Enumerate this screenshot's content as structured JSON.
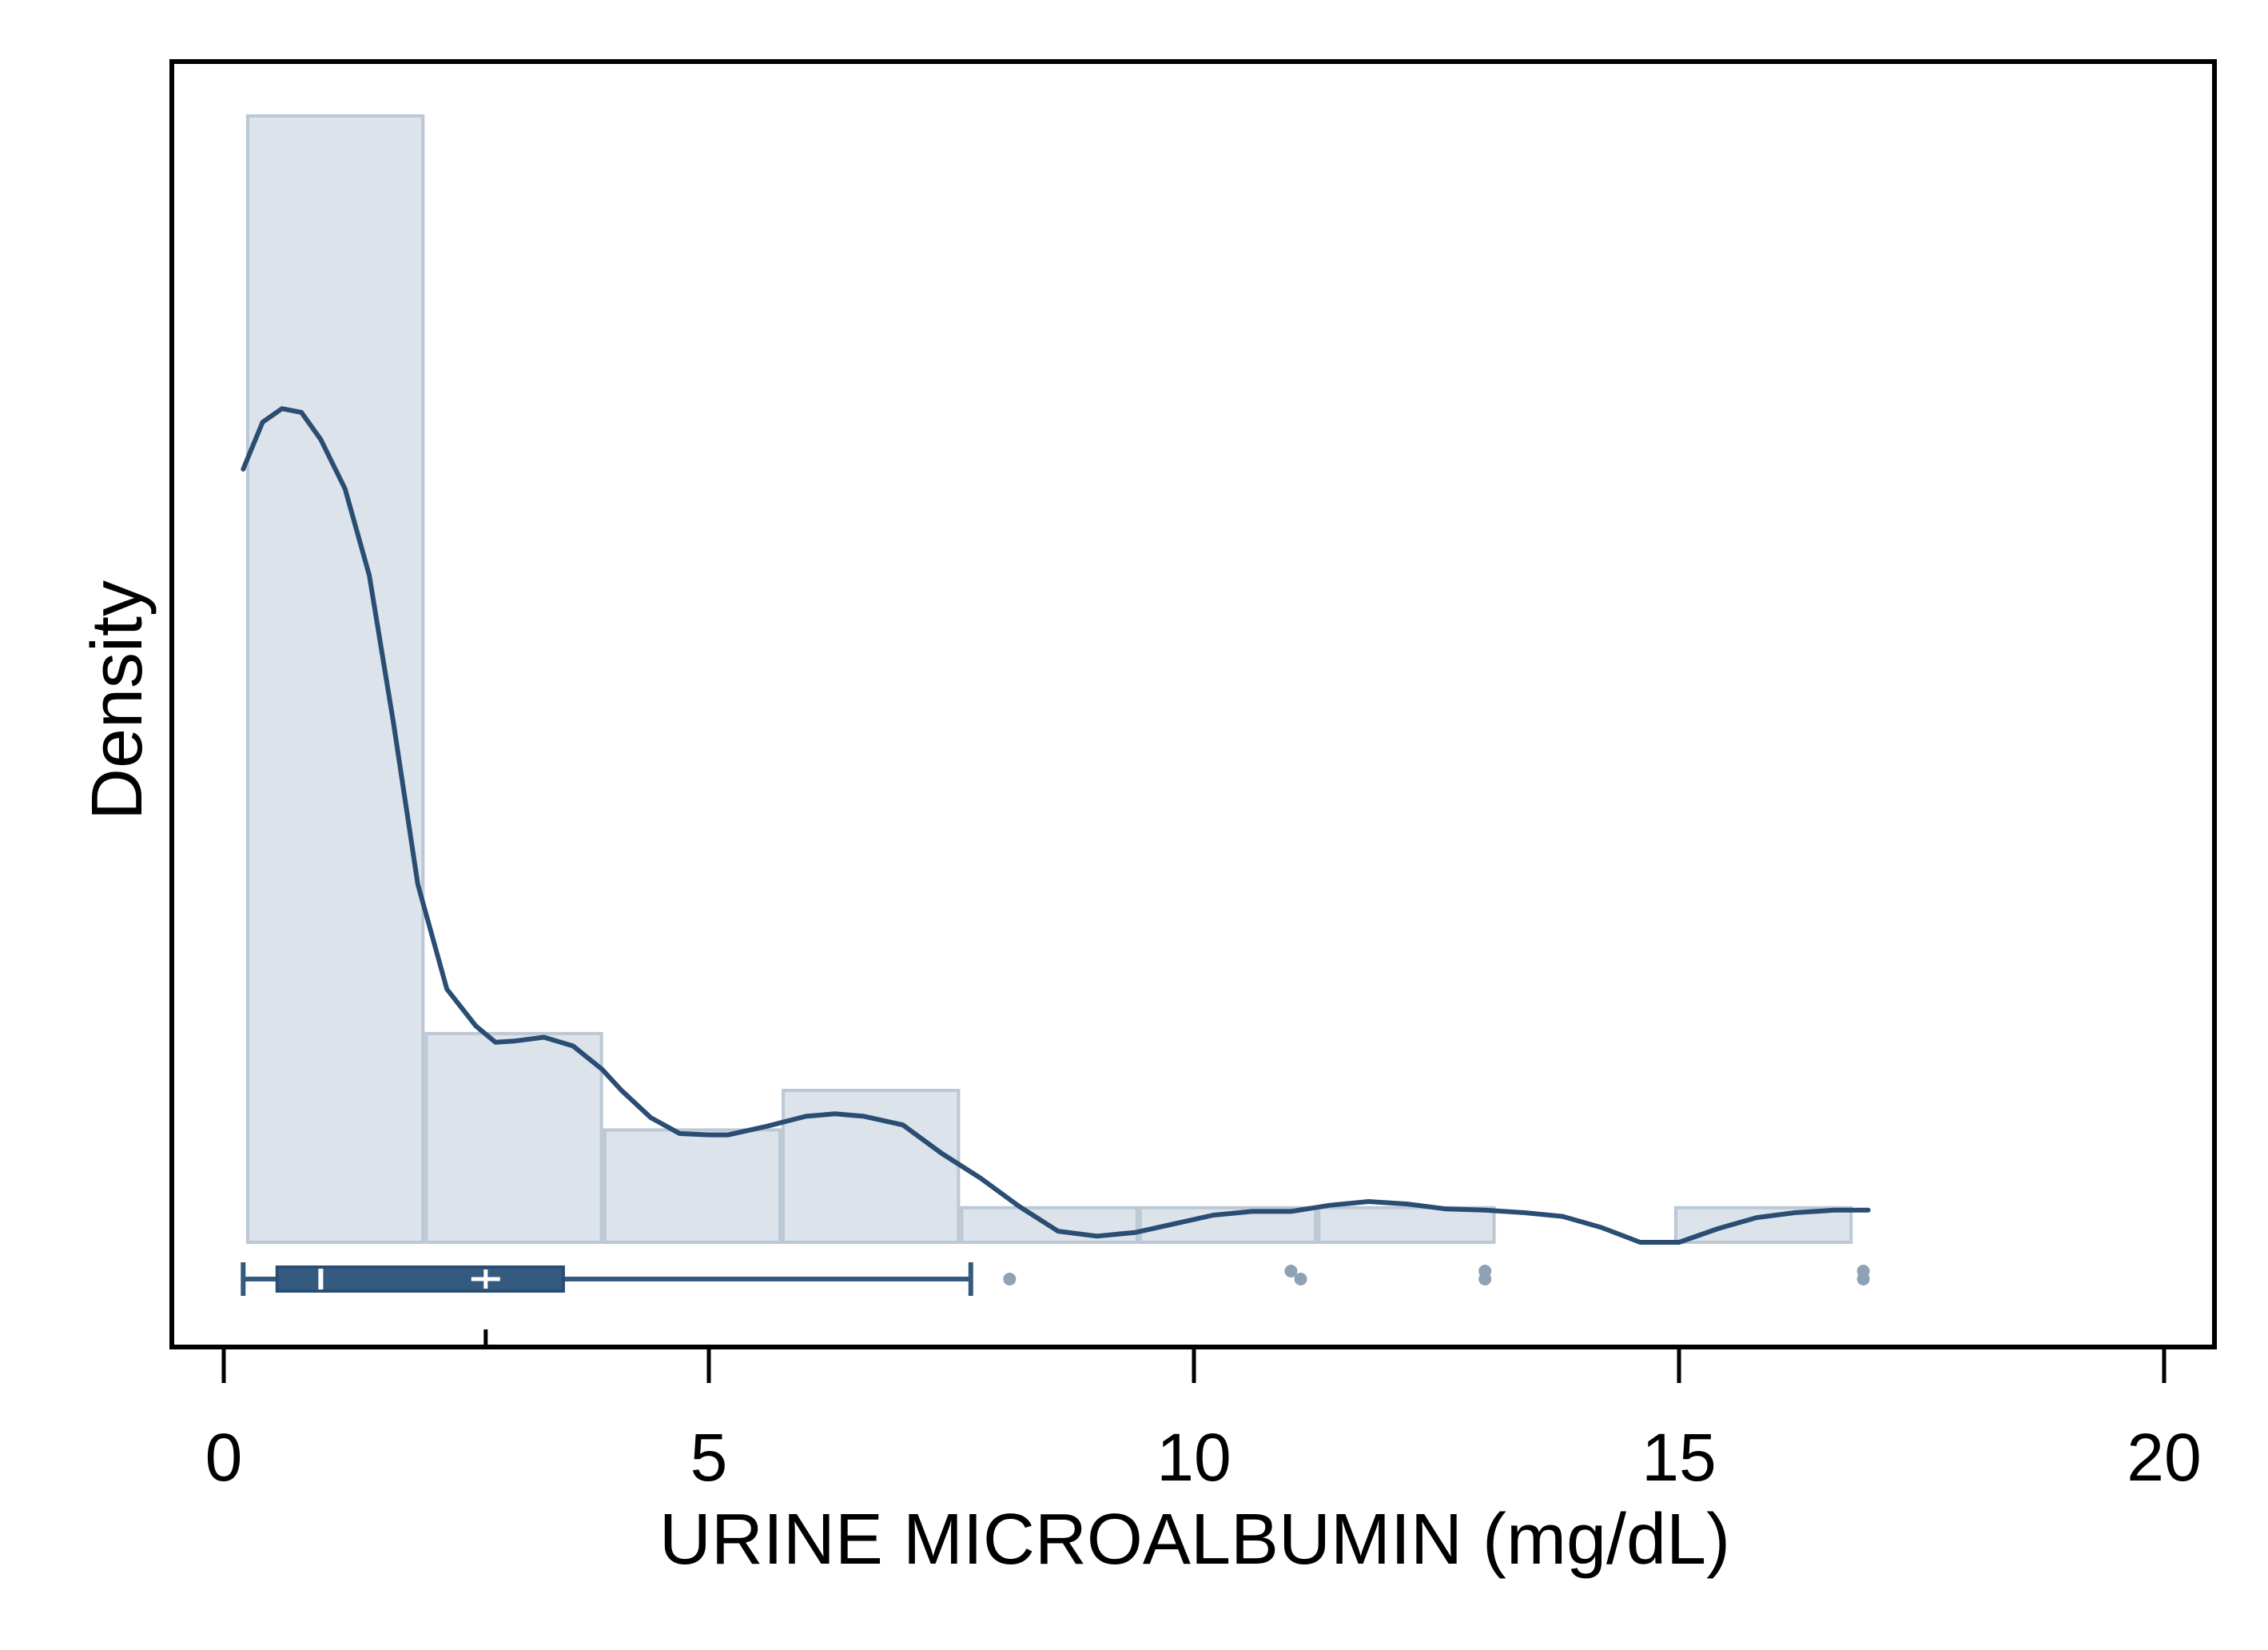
{
  "chart_data": {
    "type": "histogram",
    "title": "",
    "xlabel": "URINE MICROALBUMIN (mg/dL)",
    "ylabel": "Density",
    "xlim": [
      -0.5,
      20.5
    ],
    "ylim": [
      0,
      1
    ],
    "x_ticks": [
      "0",
      "5",
      "10",
      "15",
      "20"
    ],
    "x_tick_values": [
      0,
      5,
      10,
      15,
      20
    ],
    "grid": false,
    "legend": "none",
    "colors": {
      "bar_fill": "#dce3ea",
      "bar_stroke": "#bcc8d4",
      "line": "#2a4d73",
      "box": "#345a80",
      "outlier": "#8fa2b5",
      "frame": "#000000"
    },
    "histogram_bins": [
      {
        "start": 0.23,
        "end": 2.07,
        "density": 0.912
      },
      {
        "start": 2.07,
        "end": 3.91,
        "density": 0.169
      },
      {
        "start": 3.91,
        "end": 5.75,
        "density": 0.091
      },
      {
        "start": 5.75,
        "end": 7.59,
        "density": 0.123
      },
      {
        "start": 7.59,
        "end": 9.43,
        "density": 0.028
      },
      {
        "start": 9.43,
        "end": 11.27,
        "density": 0.028
      },
      {
        "start": 11.27,
        "end": 13.11,
        "density": 0.028
      },
      {
        "start": 13.11,
        "end": 14.95,
        "density": 0
      },
      {
        "start": 14.95,
        "end": 16.79,
        "density": 0.028
      }
    ],
    "density_curve": {
      "x": [
        0.2,
        0.4,
        0.6,
        0.8,
        1.0,
        1.25,
        1.5,
        1.75,
        2.0,
        2.3,
        2.6,
        2.8,
        3.0,
        3.3,
        3.6,
        3.9,
        4.1,
        4.4,
        4.7,
        5.0,
        5.2,
        5.6,
        6.0,
        6.3,
        6.6,
        7.0,
        7.4,
        7.8,
        8.2,
        8.6,
        9.0,
        9.4,
        9.8,
        10.2,
        10.6,
        11.0,
        11.4,
        11.8,
        12.2,
        12.6,
        13.0,
        13.4,
        13.8,
        14.2,
        14.6,
        15.0,
        15.4,
        15.8,
        16.2,
        16.6,
        16.95
      ],
      "y": [
        0.626,
        0.664,
        0.675,
        0.672,
        0.65,
        0.61,
        0.54,
        0.42,
        0.29,
        0.205,
        0.175,
        0.162,
        0.163,
        0.166,
        0.159,
        0.14,
        0.123,
        0.101,
        0.088,
        0.087,
        0.087,
        0.094,
        0.102,
        0.104,
        0.102,
        0.095,
        0.072,
        0.052,
        0.029,
        0.009,
        0.005,
        0.008,
        0.015,
        0.022,
        0.025,
        0.025,
        0.03,
        0.033,
        0.031,
        0.027,
        0.026,
        0.024,
        0.021,
        0.012,
        0.0,
        0.0,
        0.011,
        0.02,
        0.024,
        0.026,
        0.026
      ]
    },
    "boxplot": {
      "whisker_low": 0.2,
      "q1": 0.55,
      "median": 1.0,
      "mean": 2.7,
      "q3": 3.5,
      "whisker_high": 7.7,
      "outliers": [
        8.1,
        11.0,
        11.1,
        13.0,
        13.0,
        16.9,
        16.9
      ]
    },
    "rug_marks": [
      2.7
    ]
  }
}
